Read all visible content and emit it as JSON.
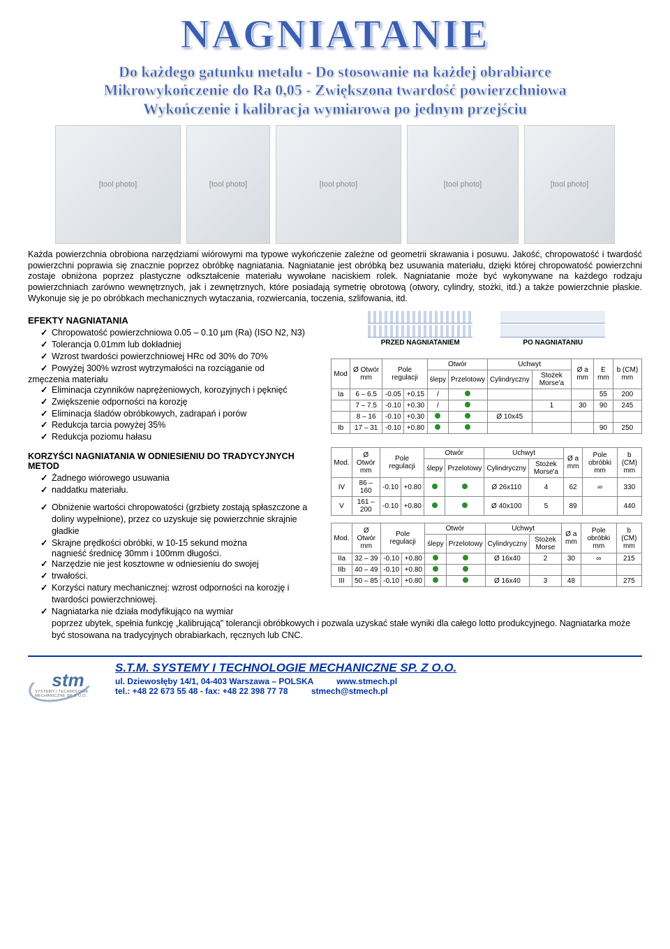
{
  "title": "NAGNIATANIE",
  "sub_lines": [
    "Do każdego gatunku metalu - Do stosowanie na każdej obrabiarce",
    "Mikrowykończenie do Ra 0,05 - Zwiększona twardość powierzchniowa",
    "Wykończenie i kalibracja wymiarowa po jednym przejściu"
  ],
  "body_para": "Każda powierzchnia obrobiona narzędziami wiórowymi ma typowe wykończenie zależne od geometrii skrawania i posuwu. Jakość, chropowatość i twardość powierzchni poprawia się znacznie poprzez obróbkę nagniatania. Nagniatanie jest obróbką bez usuwania materiału, dzięki której chropowatość powierzchni zostaje obniżona poprzez plastyczne odkształcenie materiału wywołane naciskiem rolek. Nagniatanie może być wykonywane na każdego rodzaju powierzchniach zarówno wewnętrznych, jak i zewnętrznych, które posiadają symetrię obrotową (otwory, cylindry, stożki, itd.) a także powierzchnie płaskie. Wykonuje się je po obróbkach mechanicznych wytaczania, rozwiercania, toczenia, szlifowania, itd.",
  "effects_head": "EFEKTY NAGNIATANIA",
  "effects": [
    "Chropowatość powierzchniowa 0.05 – 0.10 µm (Ra) (ISO N2, N3)",
    "Tolerancja 0.01mm lub dokładniej",
    "Wzrost twardości powierzchniowej HRc od 30% do 70%",
    "Powyżej 300% wzrost wytrzymałości na rozciąganie od"
  ],
  "effects_cont_line": "zmęczenia materiału",
  "effects2": [
    "Eliminacja czynników naprężeniowych, korozyjnych i pęknięć",
    "Zwiększenie odporności na korozję",
    "Eliminacja śladów obróbkowych, zadrapań i porów",
    "Redukcja tarcia powyżej 35%",
    "Redukcja poziomu hałasu"
  ],
  "diag_before": "PRZED NAGNIATANIEM",
  "diag_after": "PO NAGNIATANIU",
  "benefits_head": "KORZYŚCI NAGNIATANIA W ODNIESIENIU DO TRADYCYJNYCH METOD",
  "benefits": [
    "Żadnego wiórowego usuwania",
    "naddatku materiału."
  ],
  "benefits2": [
    "Obniżenie wartości chropowatości (grzbiety zostają spłaszczone a doliny wypełnione), przez co uzyskuje się powierzchnie skrajnie gładkie",
    "Skrajne prędkości obróbki, w 10-15 sekund można"
  ],
  "benefits2_cont": "nagnieść średnicę 30mm i 100mm długości.",
  "benefits3": [
    "Narzędzie nie jest kosztowne w odniesieniu do swojej",
    " trwałości.",
    "Korzyści natury mechanicznej: wzrost odporności na korozję i twardości powierzchniowej.",
    "Nagniatarka nie działa modyfikująco na wymiar"
  ],
  "bottom_line": "poprzez ubytek, spełnia funkcję „kalibrującą\" tolerancji obróbkowych i pozwala uzyskać stałe wyniki dla całego lotto produkcyjnego. Nagniatarka może być stosowana na tradycyjnych obrabiarkach, ręcznych lub CNC.",
  "table1": {
    "headers": {
      "mod": "Mod",
      "otwor": "Ø Otwór mm",
      "pole": "Pole regulacji",
      "otwor_grp": "Otwór",
      "slepy": "ślepy",
      "przelot": "Przelotowy",
      "uchwyt_grp": "Uchwyt",
      "cyl": "Cylindryczny",
      "stozek": "Stożek Morse'a",
      "oa": "Ø a mm",
      "e": "E mm",
      "bcm": "b (CM) mm"
    },
    "rows": [
      {
        "mod": "Ia",
        "ot": "6 – 6.5",
        "p1": "-0.05",
        "p2": "+0.15",
        "sl": "/",
        "pr": "dot",
        "cyl": "",
        "st": "",
        "oa": "",
        "e": "55",
        "b": "200"
      },
      {
        "mod": "",
        "ot": "7 – 7.5",
        "p1": "-0.10",
        "p2": "+0.30",
        "sl": "/",
        "pr": "dot",
        "cyl": "",
        "st": "1",
        "oa": "30",
        "e": "90",
        "b": "245"
      },
      {
        "mod": "",
        "ot": "8 – 16",
        "p1": "-0.10",
        "p2": "+0.30",
        "sl": "dot",
        "pr": "dot",
        "cyl": "Ø 10x45",
        "st": "",
        "oa": "",
        "e": "",
        "b": ""
      },
      {
        "mod": "Ib",
        "ot": "17 – 31",
        "p1": "-0.10",
        "p2": "+0.80",
        "sl": "dot",
        "pr": "dot",
        "cyl": "",
        "st": "",
        "oa": "",
        "e": "90",
        "b": "250"
      }
    ]
  },
  "table2": {
    "headers": {
      "mod": "Mod.",
      "otwor": "Ø Otwór mm",
      "pole": "Pole regulacji",
      "otwor_grp": "Otwór",
      "slepy": "ślepy",
      "przelot": "Przelotowy",
      "uchwyt_grp": "Uchwyt",
      "cyl": "Cylindryczny",
      "stozek": "Stożek Morse'a",
      "oa": "Ø a mm",
      "poleob": "Pole obróbki mm",
      "bcm": "b (CM) mm"
    },
    "rows": [
      {
        "mod": "IV",
        "ot": "86 – 160",
        "p1": "-0.10",
        "p2": "+0.80",
        "sl": "dot",
        "pr": "dot",
        "cyl": "Ø 26x110",
        "st": "4",
        "oa": "62",
        "po": "∞",
        "b": "330"
      },
      {
        "mod": "V",
        "ot": "161 – 200",
        "p1": "-0.10",
        "p2": "+0.80",
        "sl": "dot",
        "pr": "dot",
        "cyl": "Ø 40x100",
        "st": "5",
        "oa": "89",
        "po": "",
        "b": "440"
      }
    ]
  },
  "table3": {
    "headers": {
      "mod": "Mod.",
      "otwor": "Ø Otwór mm",
      "pole": "Pole regulacji",
      "otwor_grp": "Otwór",
      "slepy": "ślepy",
      "przelot": "Przelotowy",
      "uchwyt_grp": "Uchwyt",
      "cyl": "Cylindryczny",
      "stozek": "Stożek Morse",
      "oa": "Ø a mm",
      "poleob": "Pole obróbki mm",
      "bcm": "b (CM) mm"
    },
    "rows": [
      {
        "mod": "IIa",
        "ot": "32 – 39",
        "p1": "-0.10",
        "p2": "+0.80",
        "sl": "dot",
        "pr": "dot",
        "cyl": "Ø 16x40",
        "st": "2",
        "oa": "30",
        "po": "∞",
        "b": "215"
      },
      {
        "mod": "IIb",
        "ot": "40 – 49",
        "p1": "-0.10",
        "p2": "+0.80",
        "sl": "dot",
        "pr": "dot",
        "cyl": "",
        "st": "",
        "oa": "",
        "po": "",
        "b": ""
      },
      {
        "mod": "III",
        "ot": "50 – 85",
        "p1": "-0.10",
        "p2": "+0.80",
        "sl": "dot",
        "pr": "dot",
        "cyl": "Ø 16x40",
        "st": "3",
        "oa": "48",
        "po": "",
        "b": "275"
      }
    ]
  },
  "footer": {
    "company": "S.T.M. SYSTEMY I TECHNOLOGIE MECHANICZNE SP. Z O.O.",
    "addr": "ul. Dziewosłęby 14/1, 04-403 Warszawa – POLSKA",
    "site": "www.stmech.pl",
    "tel": "tel.: +48 22 673 55 48  -  fax: +48 22 398 77 78",
    "email": "stmech@stmech.pl",
    "logo_sub": "SYSTEMY I TECHNOLOGIE MECHANICZNE SP. Z O.O."
  }
}
